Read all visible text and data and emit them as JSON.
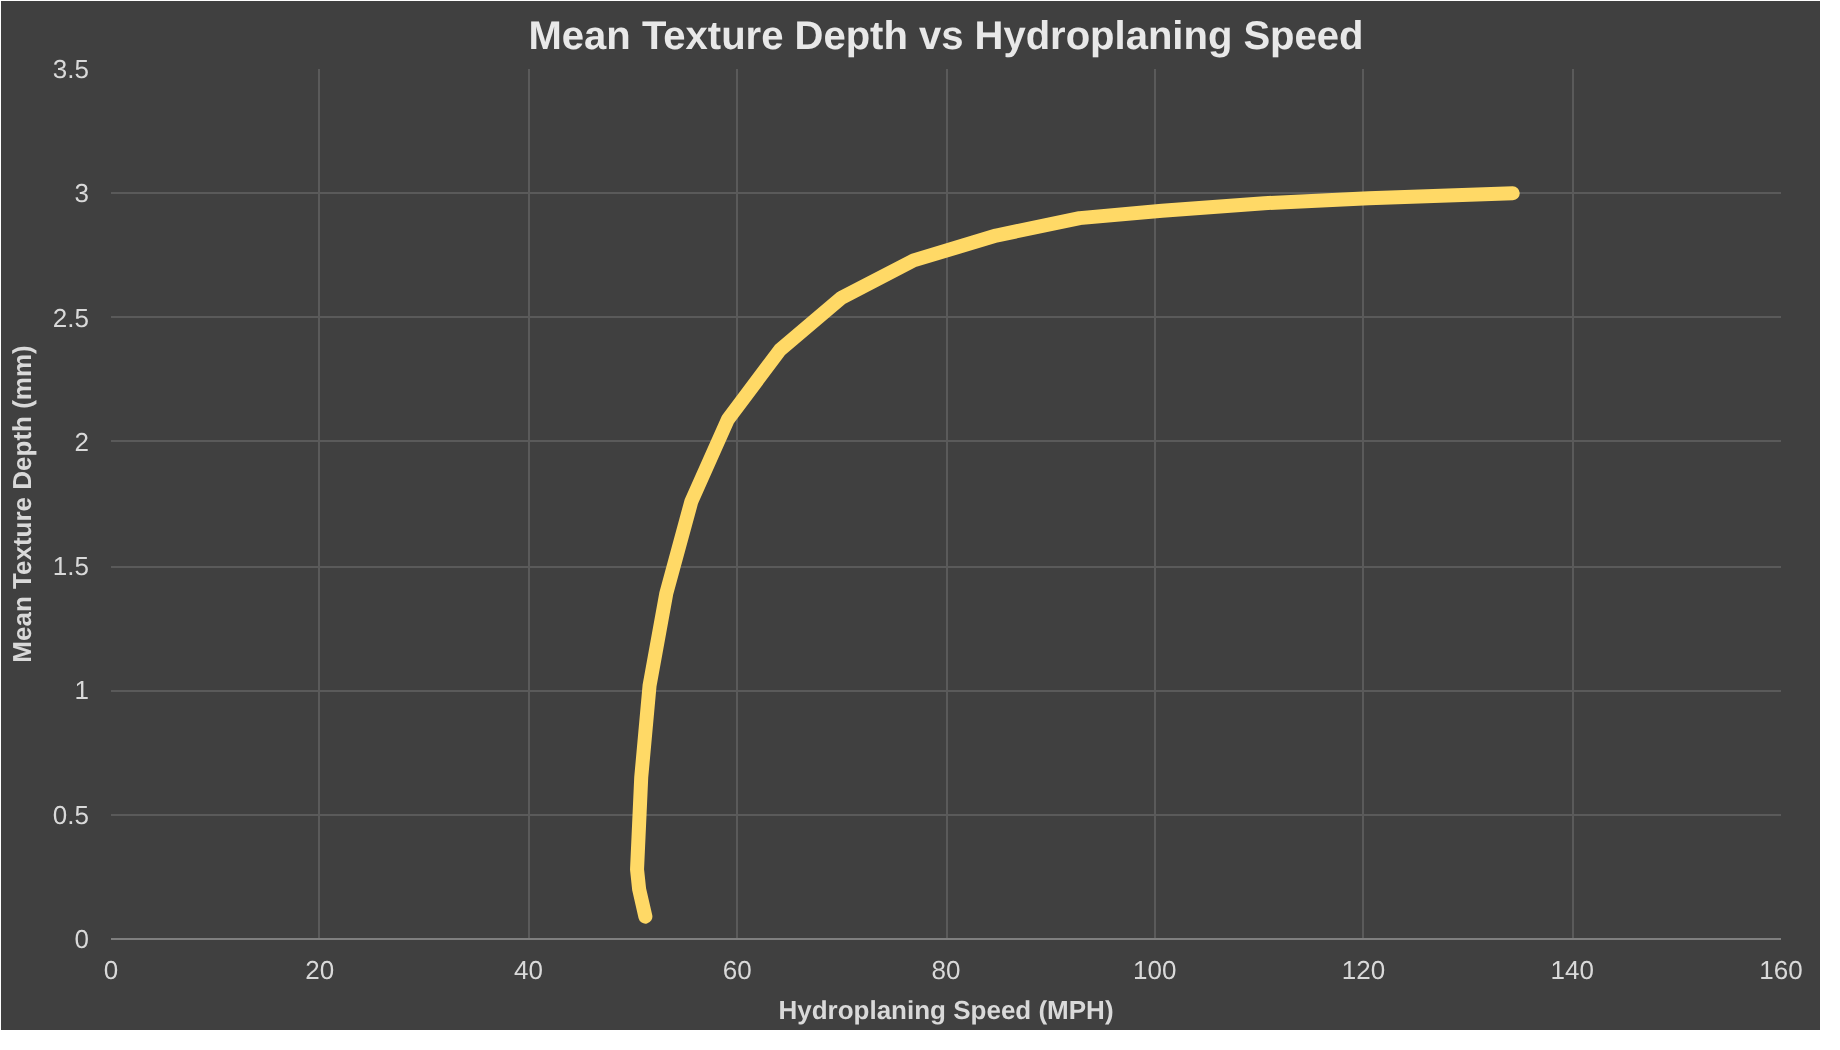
{
  "chart_data": {
    "type": "line",
    "title": "Mean Texture Depth vs Hydroplaning Speed",
    "xlabel": "Hydroplaning Speed (MPH)",
    "ylabel": "Mean Texture Depth (mm)",
    "x": [
      51.2,
      50.6,
      50.4,
      50.8,
      51.6,
      53.2,
      55.6,
      59.1,
      64.1,
      70.0,
      76.9,
      84.8,
      92.8,
      100.7,
      110.5,
      120.5,
      134.3
    ],
    "series": [
      {
        "color": "#ffd966",
        "values": [
          0.09,
          0.2,
          0.28,
          0.65,
          1.02,
          1.39,
          1.76,
          2.09,
          2.37,
          2.58,
          2.73,
          2.83,
          2.9,
          2.93,
          2.96,
          2.98,
          3.0
        ]
      }
    ],
    "xlim": [
      0,
      160
    ],
    "xticks": [
      0,
      20,
      40,
      60,
      80,
      100,
      120,
      140,
      160
    ],
    "ylim": [
      0,
      3.5
    ],
    "yticks": [
      0,
      0.5,
      1,
      1.5,
      2,
      2.5,
      3,
      3.5
    ],
    "grid": true,
    "marker": "none",
    "line_style": "solid"
  }
}
